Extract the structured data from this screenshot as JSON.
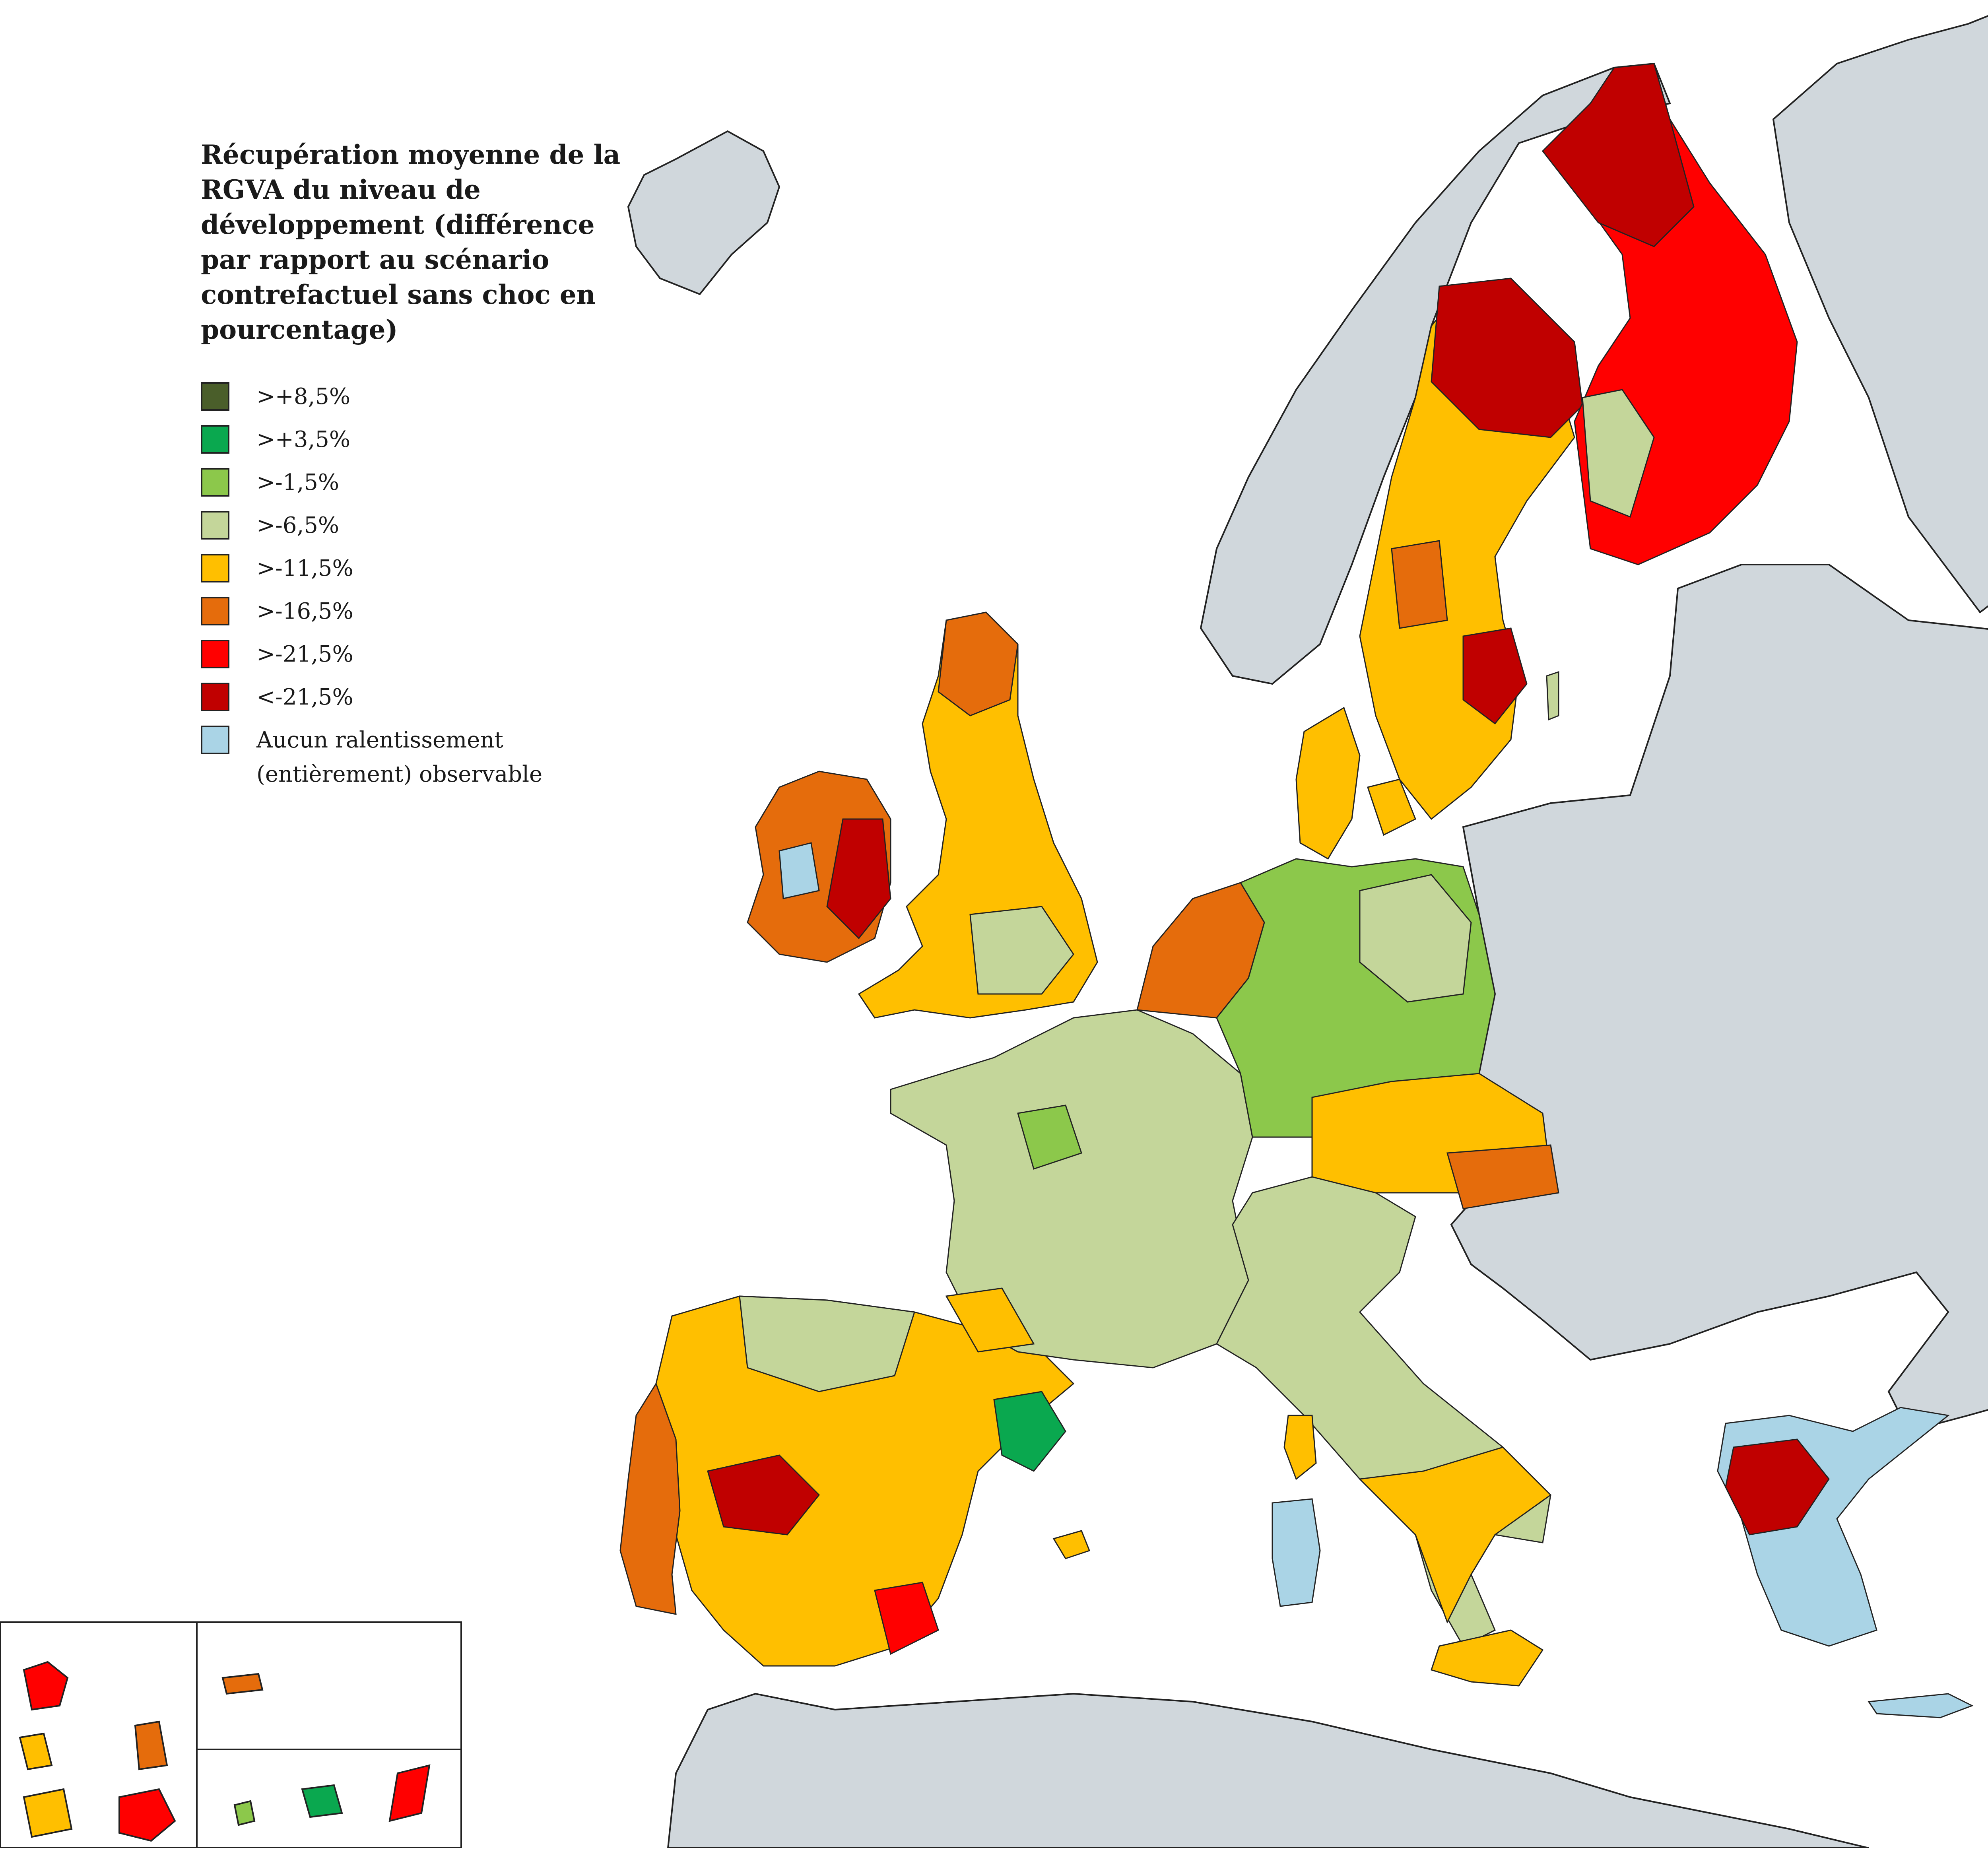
{
  "legend": {
    "title": "Récupération moyenne de la RGVA du niveau de développement (différence par rapport au scénario contrefactuel sans choc en pourcentage)",
    "items": [
      {
        "label": ">+8,5%",
        "color": "#4a5e2a"
      },
      {
        "label": ">+3,5%",
        "color": "#0aa84f"
      },
      {
        "label": ">-1,5%",
        "color": "#8cc84b"
      },
      {
        "label": ">-6,5%",
        "color": "#c4d69a"
      },
      {
        "label": ">-11,5%",
        "color": "#ffbf00"
      },
      {
        "label": ">-16,5%",
        "color": "#e56c0c"
      },
      {
        "label": ">-21,5%",
        "color": "#ff0000"
      },
      {
        "label": "<-21,5%",
        "color": "#c00000"
      }
    ],
    "no_data": {
      "label_line1": "Aucun ralentissement",
      "label_line2": "(entièrement) observable",
      "color": "#aad4e6"
    }
  },
  "colors": {
    "sea": "#ffffff",
    "non_eu_land": "#d0d7dc",
    "border": "#222222"
  }
}
